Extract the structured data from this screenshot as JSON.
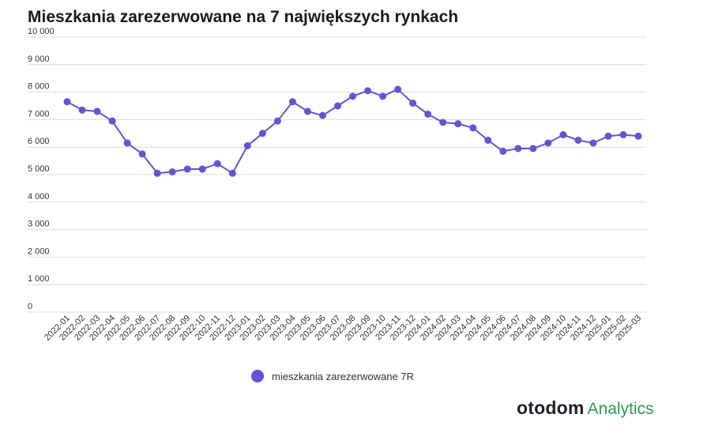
{
  "title": "Mieszkania zarezerwowane na 7 największych rynkach",
  "colors": {
    "series": "#6b4fd8",
    "grid": "#dcdcdc",
    "brand_green": "#2e9a55"
  },
  "legend": {
    "label": "mieszkania zarezerwowane 7R"
  },
  "brand": {
    "name": "otodom",
    "suffix": "Analytics"
  },
  "chart_data": {
    "type": "line",
    "title": "Mieszkania zarezerwowane na 7 największych rynkach",
    "xlabel": "",
    "ylabel": "",
    "ylim": [
      0,
      10000
    ],
    "yticks": [
      "0",
      "1 000",
      "2 000",
      "3 000",
      "4 000",
      "5 000",
      "6 000",
      "7 000",
      "8 000",
      "9 000",
      "10 000"
    ],
    "grid": true,
    "legend_position": "bottom",
    "categories": [
      "2022-01",
      "2022-02",
      "2022-03",
      "2022-04",
      "2022-05",
      "2022-06",
      "2022-07",
      "2022-08",
      "2022-09",
      "2022-10",
      "2022-11",
      "2022-12",
      "2023-01",
      "2023-02",
      "2023-03",
      "2023-04",
      "2023-05",
      "2023-06",
      "2023-07",
      "2023-08",
      "2023-09",
      "2023-10",
      "2023-11",
      "2023-12",
      "2024-01",
      "2024-02",
      "2024-03",
      "2024-04",
      "2024-05",
      "2024-06",
      "2024-07",
      "2024-08",
      "2024-09",
      "2024-10",
      "2024-11",
      "2024-12",
      "2025-01",
      "2025-02",
      "2025-03"
    ],
    "series": [
      {
        "name": "mieszkania zarezerwowane 7R",
        "values": [
          7650,
          7350,
          7300,
          6950,
          6150,
          5750,
          5050,
          5100,
          5200,
          5200,
          5400,
          5050,
          6050,
          6500,
          6950,
          7650,
          7300,
          7150,
          7500,
          7850,
          8050,
          7850,
          8100,
          7600,
          7200,
          6900,
          6850,
          6700,
          6250,
          5850,
          5950,
          5950,
          6150,
          6450,
          6250,
          6150,
          6400,
          6450,
          6400
        ]
      }
    ]
  }
}
